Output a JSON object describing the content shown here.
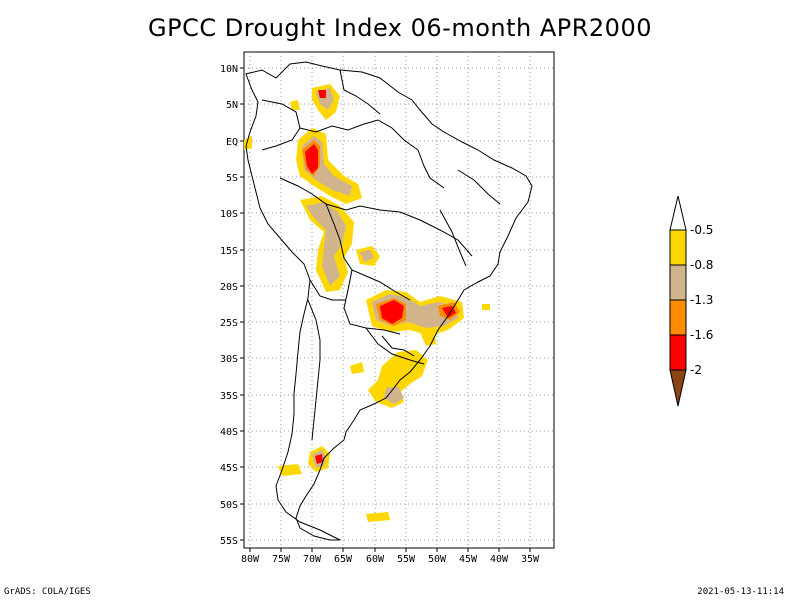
{
  "title": "GPCC Drought Index 06-month APR2000",
  "footer": {
    "left": "GrADS: COLA/IGES",
    "right": "2021-05-13-11:14"
  },
  "axes": {
    "lat_labels": [
      "10N",
      "5N",
      "EQ",
      "5S",
      "10S",
      "15S",
      "20S",
      "25S",
      "30S",
      "35S",
      "40S",
      "45S",
      "50S",
      "55S"
    ],
    "lon_labels": [
      "80W",
      "75W",
      "70W",
      "65W",
      "60W",
      "55W",
      "50W",
      "45W",
      "40W",
      "35W"
    ]
  },
  "legend": {
    "labels": [
      "-0.5",
      "-0.8",
      "-1.3",
      "-1.6",
      "-2"
    ],
    "colors": {
      "above_top": "#ffffff",
      "band1": "#ffd700",
      "band2": "#d2b48c",
      "band3": "#ff8c00",
      "band4": "#ff0000",
      "below_bottom": "#8b4513"
    }
  },
  "map_colors": {
    "light": "#ffd700",
    "tan": "#d2b48c",
    "orange": "#ff8c00",
    "red": "#ff0000",
    "coast": "#000000",
    "grid": "#999999"
  }
}
